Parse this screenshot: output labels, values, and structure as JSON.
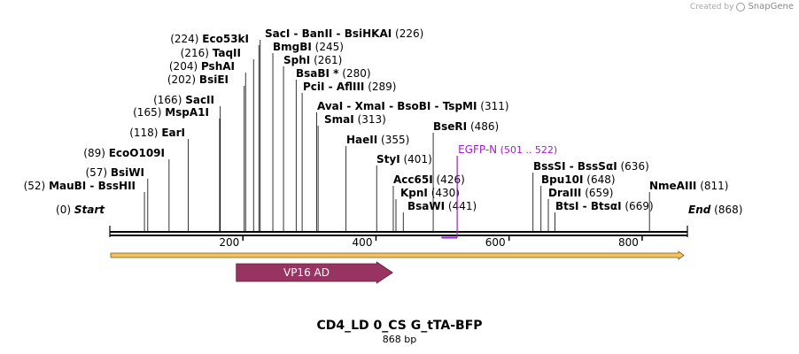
{
  "app": {
    "created_by": "Created by",
    "brand": "SnapGene"
  },
  "sequence": {
    "name": "CD4_LD 0_CS G_tTA-BFP",
    "length_label": "868 bp",
    "length": 868
  },
  "ruler": {
    "ticks": [
      {
        "label": "200",
        "pos": 200
      },
      {
        "label": "400",
        "pos": 400
      },
      {
        "label": "600",
        "pos": 600
      },
      {
        "label": "800",
        "pos": 800
      }
    ]
  },
  "ends": {
    "start": {
      "name": "Start",
      "pos_label": "(0)",
      "pos": 0
    },
    "end": {
      "name": "End",
      "pos_label": "(868)",
      "pos": 868
    }
  },
  "sites": [
    {
      "id": "maubi",
      "pos": 52,
      "pos_label": "(52)",
      "names": "MauBI   -  BssHII"
    },
    {
      "id": "bsiwi",
      "pos": 57,
      "pos_label": "(57)",
      "names": "BsiWI"
    },
    {
      "id": "ecoo109i",
      "pos": 89,
      "pos_label": "(89)",
      "names": "EcoO109I"
    },
    {
      "id": "eari",
      "pos": 118,
      "pos_label": "(118)",
      "names": "EarI"
    },
    {
      "id": "mspa1i",
      "pos": 165,
      "pos_label": "(165)",
      "names": "MspA1I"
    },
    {
      "id": "sacii",
      "pos": 166,
      "pos_label": "(166)",
      "names": "SacII"
    },
    {
      "id": "bsiei",
      "pos": 202,
      "pos_label": "(202)",
      "names": "BsiEI"
    },
    {
      "id": "pshai",
      "pos": 204,
      "pos_label": "(204)",
      "names": "PshAI"
    },
    {
      "id": "taqii",
      "pos": 216,
      "pos_label": "(216)",
      "names": "TaqII"
    },
    {
      "id": "eco53ki",
      "pos": 224,
      "pos_label": "(224)",
      "names": "Eco53kI"
    },
    {
      "id": "saci",
      "pos": 226,
      "pos_label": "(226)",
      "names": "SacI   -  BanII   -  BsiHKAI"
    },
    {
      "id": "bmgbi",
      "pos": 245,
      "pos_label": "(245)",
      "names": "BmgBI"
    },
    {
      "id": "sphi",
      "pos": 261,
      "pos_label": "(261)",
      "names": "SphI"
    },
    {
      "id": "bsabi",
      "pos": 280,
      "pos_label": "(280)",
      "names": "BsaBI *"
    },
    {
      "id": "pcii",
      "pos": 289,
      "pos_label": "(289)",
      "names": "PciI   -  AflIII"
    },
    {
      "id": "avai",
      "pos": 311,
      "pos_label": "(311)",
      "names": "AvaI   -  XmaI   -  BsoBI   -  TspMI"
    },
    {
      "id": "smai",
      "pos": 313,
      "pos_label": "(313)",
      "names": "SmaI"
    },
    {
      "id": "haeii",
      "pos": 355,
      "pos_label": "(355)",
      "names": "HaeII"
    },
    {
      "id": "styi",
      "pos": 401,
      "pos_label": "(401)",
      "names": "StyI"
    },
    {
      "id": "acc65i",
      "pos": 426,
      "pos_label": "(426)",
      "names": "Acc65I"
    },
    {
      "id": "kpni",
      "pos": 430,
      "pos_label": "(430)",
      "names": "KpnI"
    },
    {
      "id": "bsawi",
      "pos": 441,
      "pos_label": "(441)",
      "names": "BsaWI"
    },
    {
      "id": "bseri",
      "pos": 486,
      "pos_label": "(486)",
      "names": "BseRI"
    },
    {
      "id": "bsssi",
      "pos": 636,
      "pos_label": "(636)",
      "names": "BssSI   -  BssSαI"
    },
    {
      "id": "bpu10i",
      "pos": 648,
      "pos_label": "(648)",
      "names": "Bpu10I"
    },
    {
      "id": "draiii",
      "pos": 659,
      "pos_label": "(659)",
      "names": "DraIII"
    },
    {
      "id": "btsi",
      "pos": 669,
      "pos_label": "(669)",
      "names": "BtsI   -  BtsαI"
    },
    {
      "id": "nmeaiii",
      "pos": 811,
      "pos_label": "(811)",
      "names": "NmeAIII"
    }
  ],
  "primer": {
    "name": "EGFP-N",
    "range_label": "(501 .. 522)",
    "start": 501,
    "end": 522,
    "color": "#a020d0"
  },
  "features": {
    "backbone_arrow": {
      "start": 0,
      "end": 868,
      "color": "#f2c266",
      "border": "#7a5a10"
    },
    "vp16": {
      "label": "VP16 AD",
      "start": 190,
      "end": 425,
      "color": "#973462"
    }
  }
}
